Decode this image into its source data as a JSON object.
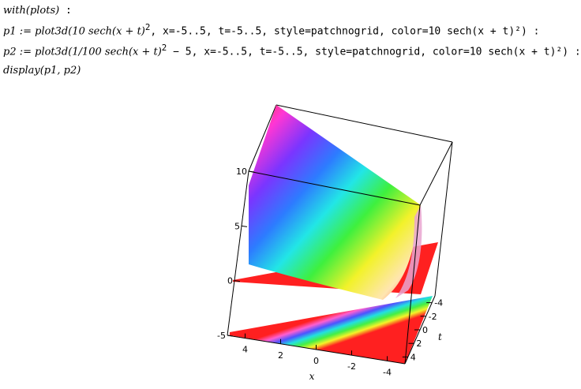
{
  "commands": [
    {
      "prefix": "with(plots)",
      "suffix": " :"
    },
    {
      "prefix": "p1 := plot3d(10 sech(x + t)",
      "sup": "2",
      "suffix": ",  x=-5..5,  t=-5..5,  style=patchnogrid,  color=10 sech(x + t)²) :"
    },
    {
      "prefix": "p2 := plot3d(1/100 sech(x + t)",
      "sup": "2",
      "suffix": " − 5,  x=-5..5,  t=-5..5,  style=patchnogrid,  color=10 sech(x + t)²) :"
    },
    {
      "prefix": "display(p1, p2)",
      "suffix": ""
    }
  ],
  "chart_data": {
    "type": "surface3d",
    "title": "",
    "xlabel": "x",
    "ylabel": "t",
    "zlabel": "",
    "x_ticks": [
      "4",
      "2",
      "0",
      "-2",
      "-4"
    ],
    "t_ticks": [
      "-4",
      "-2",
      "0",
      "2",
      "4"
    ],
    "z_ticks": [
      "10",
      "5",
      "0",
      "-5"
    ],
    "xlim": [
      -5,
      5
    ],
    "tlim": [
      -5,
      5
    ],
    "zlim": [
      -5,
      10
    ],
    "series": [
      {
        "name": "",
        "expression": "10 sech(x + t)^2"
      },
      {
        "name": "",
        "expression": "1/100 sech(x + t)^2 - 5"
      }
    ],
    "style": "patchnogrid",
    "colors": {
      "base": "#ff2020"
    }
  }
}
